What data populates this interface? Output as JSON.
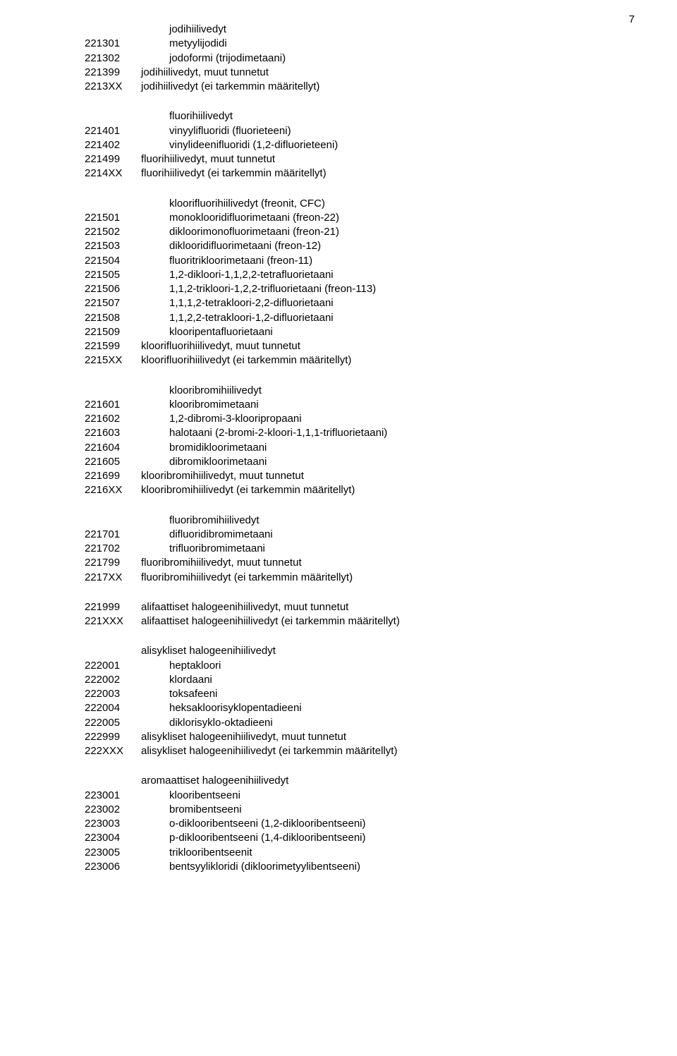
{
  "page_number": "7",
  "sections": [
    {
      "heading": {
        "code": "",
        "label": "jodihiilivedyt",
        "indent": "indent2"
      },
      "rows": [
        {
          "code": "221301",
          "label": "metyylijodidi",
          "indent": "indent2"
        },
        {
          "code": "221302",
          "label": "jodoformi (trijodimetaani)",
          "indent": "indent2"
        },
        {
          "code": "221399",
          "label": "jodihiilivedyt, muut tunnetut",
          "indent": "indent1"
        },
        {
          "code": "2213XX",
          "label": "jodihiilivedyt (ei tarkemmin määritellyt)",
          "indent": "indent1"
        }
      ]
    },
    {
      "heading": {
        "code": "",
        "label": "fluorihiilivedyt",
        "indent": "indent2"
      },
      "rows": [
        {
          "code": "221401",
          "label": "vinyylifluoridi (fluorieteeni)",
          "indent": "indent2"
        },
        {
          "code": "221402",
          "label": "vinylideenifluoridi (1,2-difluorieteeni)",
          "indent": "indent2"
        },
        {
          "code": "221499",
          "label": "fluorihiilivedyt, muut tunnetut",
          "indent": "indent1"
        },
        {
          "code": "2214XX",
          "label": "fluorihiilivedyt (ei tarkemmin määritellyt)",
          "indent": "indent1"
        }
      ]
    },
    {
      "heading": {
        "code": "",
        "label": "kloorifluorihiilivedyt (freonit, CFC)",
        "indent": "indent2"
      },
      "rows": [
        {
          "code": "221501",
          "label": "monoklooridifluorimetaani (freon-22)",
          "indent": "indent2"
        },
        {
          "code": "221502",
          "label": "dikloorimonofluorimetaani (freon-21)",
          "indent": "indent2"
        },
        {
          "code": "221503",
          "label": "diklooridifluorimetaani (freon-12)",
          "indent": "indent2"
        },
        {
          "code": "221504",
          "label": "fluoritrikloorimetaani (freon-11)",
          "indent": "indent2"
        },
        {
          "code": "221505",
          "label": "1,2-dikloori-1,1,2,2-tetrafluorietaani",
          "indent": "indent2"
        },
        {
          "code": "221506",
          "label": "1,1,2-trikloori-1,2,2-trifluorietaani (freon-113)",
          "indent": "indent2"
        },
        {
          "code": "221507",
          "label": "1,1,1,2-tetrakloori-2,2-difluorietaani",
          "indent": "indent2"
        },
        {
          "code": "221508",
          "label": "1,1,2,2-tetrakloori-1,2-difluorietaani",
          "indent": "indent2"
        },
        {
          "code": "221509",
          "label": "klooripentafluorietaani",
          "indent": "indent2"
        },
        {
          "code": "221599",
          "label": "kloorifluorihiilivedyt, muut tunnetut",
          "indent": "indent1"
        },
        {
          "code": "2215XX",
          "label": "kloorifluorihiilivedyt (ei tarkemmin määritellyt)",
          "indent": "indent1"
        }
      ]
    },
    {
      "heading": {
        "code": "",
        "label": "klooribromihiilivedyt",
        "indent": "indent2"
      },
      "rows": [
        {
          "code": "221601",
          "label": "klooribromimetaani",
          "indent": "indent2"
        },
        {
          "code": "221602",
          "label": "1,2-dibromi-3-klooripropaani",
          "indent": "indent2"
        },
        {
          "code": "221603",
          "label": "halotaani (2-bromi-2-kloori-1,1,1-trifluorietaani)",
          "indent": "indent2"
        },
        {
          "code": "221604",
          "label": "bromidikloorimetaani",
          "indent": "indent2"
        },
        {
          "code": "221605",
          "label": "dibromikloorimetaani",
          "indent": "indent2"
        },
        {
          "code": "221699",
          "label": "klooribromihiilivedyt, muut tunnetut",
          "indent": "indent1"
        },
        {
          "code": "2216XX",
          "label": "klooribromihiilivedyt (ei tarkemmin määritellyt)",
          "indent": "indent1"
        }
      ]
    },
    {
      "heading": {
        "code": "",
        "label": "fluoribromihiilivedyt",
        "indent": "indent2"
      },
      "rows": [
        {
          "code": "221701",
          "label": "difluoridibromimetaani",
          "indent": "indent2"
        },
        {
          "code": "221702",
          "label": "trifluoribromimetaani",
          "indent": "indent2"
        },
        {
          "code": "221799",
          "label": "fluoribromihiilivedyt, muut tunnetut",
          "indent": "indent1"
        },
        {
          "code": "2217XX",
          "label": "fluoribromihiilivedyt (ei tarkemmin määritellyt)",
          "indent": "indent1"
        }
      ]
    },
    {
      "heading": null,
      "rows": [
        {
          "code": "221999",
          "label": "alifaattiset halogeenihiilivedyt, muut tunnetut",
          "indent": "indent1"
        },
        {
          "code": "221XXX",
          "label": "alifaattiset halogeenihiilivedyt (ei tarkemmin määritellyt)",
          "indent": "indent1"
        }
      ]
    },
    {
      "heading": {
        "code": "",
        "label": "alisykliset halogeenihiilivedyt",
        "indent": "indent1"
      },
      "rows": [
        {
          "code": "222001",
          "label": "heptakloori",
          "indent": "indent2"
        },
        {
          "code": "222002",
          "label": "klordaani",
          "indent": "indent2"
        },
        {
          "code": "222003",
          "label": "toksafeeni",
          "indent": "indent2"
        },
        {
          "code": "222004",
          "label": "heksakloorisyklopentadieeni",
          "indent": "indent2"
        },
        {
          "code": "222005",
          "label": "diklorisyklo-oktadieeni",
          "indent": "indent2"
        },
        {
          "code": "222999",
          "label": "alisykliset halogeenihiilivedyt, muut tunnetut",
          "indent": "indent1"
        },
        {
          "code": "222XXX",
          "label": "alisykliset halogeenihiilivedyt (ei tarkemmin määritellyt)",
          "indent": "indent1"
        }
      ]
    },
    {
      "heading": {
        "code": "",
        "label": "aromaattiset halogeenihiilivedyt",
        "indent": "indent1"
      },
      "rows": [
        {
          "code": "223001",
          "label": "klooribentseeni",
          "indent": "indent2"
        },
        {
          "code": "223002",
          "label": "bromibentseeni",
          "indent": "indent2"
        },
        {
          "code": "223003",
          "label": "o-diklooribentseeni (1,2-diklooribentseeni)",
          "indent": "indent2"
        },
        {
          "code": "223004",
          "label": "p-diklooribentseeni (1,4-diklooribentseeni)",
          "indent": "indent2"
        },
        {
          "code": "223005",
          "label": "triklooribentseenit",
          "indent": "indent2"
        },
        {
          "code": "223006",
          "label": "bentsyylikloridi (dikloorimetyylibentseeni)",
          "indent": "indent2"
        }
      ]
    }
  ]
}
